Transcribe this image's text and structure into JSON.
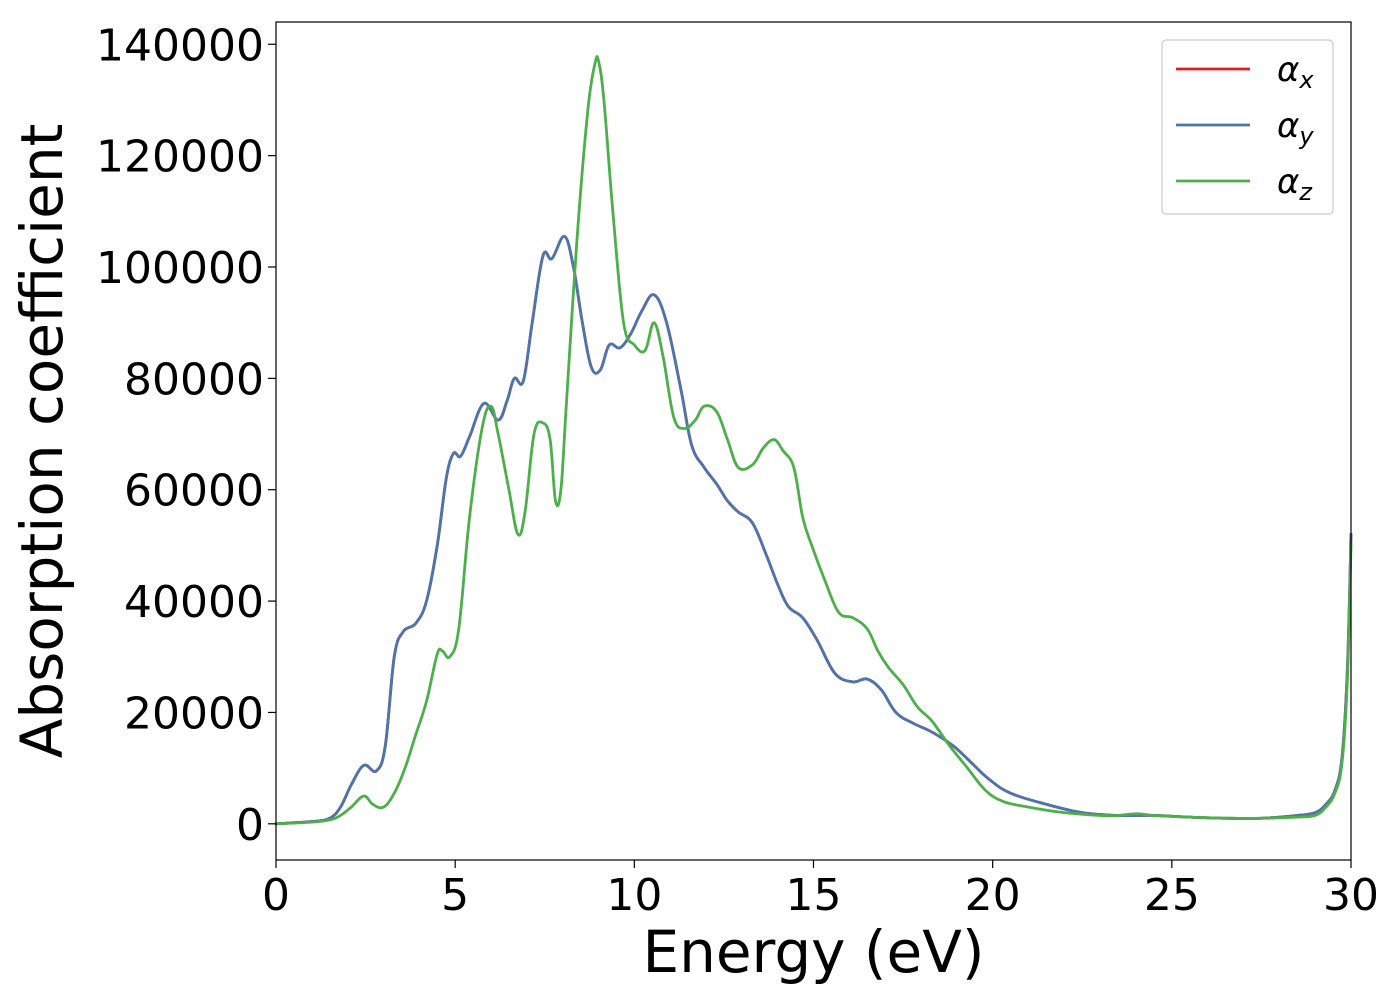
{
  "chart_data": {
    "type": "line",
    "xlabel": "Energy (eV)",
    "ylabel": "Absorption coefficient",
    "xlim": [
      0,
      30
    ],
    "ylim": [
      -6500,
      144000
    ],
    "xticks": [
      0,
      5,
      10,
      15,
      20,
      25,
      30
    ],
    "xtick_labels": [
      "0",
      "5",
      "10",
      "15",
      "20",
      "25",
      "30"
    ],
    "yticks": [
      0,
      20000,
      40000,
      60000,
      80000,
      100000,
      120000,
      140000
    ],
    "ytick_labels": [
      "0",
      "20000",
      "40000",
      "60000",
      "80000",
      "100000",
      "120000",
      "140000"
    ],
    "grid": false,
    "legend_position": "top-right",
    "series": [
      {
        "name": "αx",
        "legend_base": "α",
        "legend_sub": "x",
        "color": "#e41a1c",
        "x": [
          0,
          1,
          1.5,
          1.8,
          2.1,
          2.45,
          2.8,
          3.05,
          3.3,
          3.55,
          3.9,
          4.2,
          4.5,
          4.75,
          4.95,
          5.15,
          5.4,
          5.8,
          6.2,
          6.45,
          6.65,
          6.9,
          7.15,
          7.45,
          7.7,
          8.05,
          8.3,
          8.55,
          8.8,
          9.05,
          9.3,
          9.6,
          9.9,
          10.2,
          10.55,
          10.9,
          11.3,
          11.6,
          11.95,
          12.3,
          12.6,
          12.9,
          13.3,
          13.7,
          14.0,
          14.3,
          14.7,
          15.1,
          15.6,
          16.1,
          16.5,
          16.9,
          17.3,
          17.8,
          18.3,
          18.9,
          19.4,
          19.9,
          20.5,
          21.5,
          22.5,
          23.5,
          24.5,
          25.5,
          26.5,
          27.5,
          28.5,
          29.0,
          29.3,
          29.55,
          29.75,
          29.9,
          30.0
        ],
        "values": [
          0,
          400,
          1000,
          3000,
          7000,
          10500,
          9500,
          14000,
          30000,
          34500,
          36000,
          40000,
          50000,
          62000,
          66500,
          66000,
          69500,
          75500,
          72500,
          76000,
          80000,
          79500,
          90000,
          102000,
          101500,
          105500,
          100000,
          90000,
          82000,
          81500,
          86000,
          85500,
          88000,
          92000,
          95000,
          90000,
          78000,
          68000,
          64000,
          61000,
          58000,
          56000,
          54000,
          48000,
          43000,
          39000,
          37000,
          33000,
          27000,
          25500,
          26000,
          24000,
          20000,
          18000,
          16500,
          14000,
          11000,
          8000,
          5500,
          3500,
          2000,
          1500,
          1500,
          1200,
          1000,
          1000,
          1500,
          2000,
          3500,
          6000,
          12000,
          28000,
          52000
        ]
      },
      {
        "name": "αy",
        "legend_base": "α",
        "legend_sub": "y",
        "color": "#4a76ab",
        "x": [
          0,
          1,
          1.5,
          1.8,
          2.1,
          2.45,
          2.8,
          3.05,
          3.3,
          3.55,
          3.9,
          4.2,
          4.5,
          4.75,
          4.95,
          5.15,
          5.4,
          5.8,
          6.2,
          6.45,
          6.65,
          6.9,
          7.15,
          7.45,
          7.7,
          8.05,
          8.3,
          8.55,
          8.8,
          9.05,
          9.3,
          9.6,
          9.9,
          10.2,
          10.55,
          10.9,
          11.3,
          11.6,
          11.95,
          12.3,
          12.6,
          12.9,
          13.3,
          13.7,
          14.0,
          14.3,
          14.7,
          15.1,
          15.6,
          16.1,
          16.5,
          16.9,
          17.3,
          17.8,
          18.3,
          18.9,
          19.4,
          19.9,
          20.5,
          21.5,
          22.5,
          23.5,
          24.5,
          25.5,
          26.5,
          27.5,
          28.5,
          29.0,
          29.3,
          29.55,
          29.75,
          29.9,
          30.0
        ],
        "values": [
          0,
          400,
          1000,
          3000,
          7000,
          10500,
          9500,
          14000,
          30000,
          34500,
          36000,
          40000,
          50000,
          62000,
          66500,
          66000,
          69500,
          75500,
          72500,
          76000,
          80000,
          79500,
          90000,
          102000,
          101500,
          105500,
          100000,
          90000,
          82000,
          81500,
          86000,
          85500,
          88000,
          92000,
          95000,
          90000,
          78000,
          68000,
          64000,
          61000,
          58000,
          56000,
          54000,
          48000,
          43000,
          39000,
          37000,
          33000,
          27000,
          25500,
          26000,
          24000,
          20000,
          18000,
          16500,
          14000,
          11000,
          8000,
          5500,
          3500,
          2000,
          1500,
          1500,
          1200,
          1000,
          1000,
          1500,
          2000,
          3500,
          6000,
          12000,
          28000,
          52000
        ]
      },
      {
        "name": "αz",
        "legend_base": "α",
        "legend_sub": "z",
        "color": "#4daf4a",
        "x": [
          0,
          1,
          1.5,
          1.8,
          2.1,
          2.45,
          2.7,
          3.0,
          3.3,
          3.6,
          3.9,
          4.2,
          4.5,
          4.65,
          4.85,
          5.1,
          5.4,
          5.75,
          6.0,
          6.2,
          6.5,
          6.75,
          6.95,
          7.2,
          7.45,
          7.65,
          7.8,
          7.95,
          8.1,
          8.4,
          8.7,
          8.9,
          9.0,
          9.15,
          9.4,
          9.7,
          10.0,
          10.3,
          10.55,
          10.8,
          11.1,
          11.4,
          11.7,
          11.95,
          12.3,
          12.6,
          12.9,
          13.3,
          13.6,
          13.9,
          14.15,
          14.45,
          14.7,
          14.95,
          15.3,
          15.7,
          16.1,
          16.5,
          16.8,
          17.1,
          17.5,
          17.9,
          18.3,
          18.8,
          19.3,
          19.8,
          20.3,
          21.0,
          22.0,
          23.0,
          23.5,
          24.0,
          24.5,
          25.5,
          26.5,
          27.5,
          28.5,
          29.0,
          29.3,
          29.55,
          29.75,
          29.9,
          30.0
        ],
        "values": [
          0,
          300,
          700,
          1500,
          3000,
          5000,
          3500,
          3000,
          5500,
          10000,
          16000,
          22000,
          30500,
          31000,
          30000,
          35000,
          55000,
          71000,
          75000,
          70000,
          60000,
          52000,
          56000,
          70000,
          72000,
          69000,
          58000,
          60000,
          75000,
          105000,
          128000,
          136500,
          137000,
          130000,
          110000,
          90000,
          86000,
          85000,
          90000,
          84000,
          73000,
          71000,
          72500,
          75000,
          74000,
          69000,
          64000,
          64500,
          67500,
          69000,
          67000,
          64000,
          55000,
          50000,
          44000,
          38000,
          37000,
          35000,
          31000,
          28000,
          25000,
          21000,
          18500,
          14000,
          10000,
          6000,
          4000,
          3000,
          2000,
          1500,
          1500,
          1800,
          1500,
          1200,
          1000,
          1000,
          1200,
          1500,
          3000,
          5500,
          11000,
          26000,
          50000
        ]
      }
    ]
  }
}
